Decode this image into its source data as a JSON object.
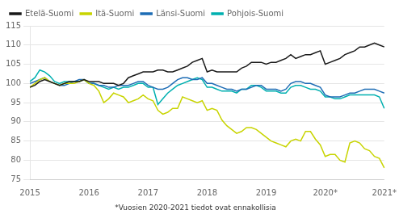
{
  "chart_data": {
    "type": "line",
    "annotations": [
      "*Vuosien 2020-2021 tiedot ovat ennakollisia"
    ],
    "categories": [
      "2015",
      null,
      null,
      null,
      null,
      null,
      null,
      null,
      null,
      null,
      null,
      null,
      "2016",
      null,
      null,
      null,
      null,
      null,
      null,
      null,
      null,
      null,
      null,
      null,
      "2017",
      null,
      null,
      null,
      null,
      null,
      null,
      null,
      null,
      null,
      null,
      null,
      "2018",
      null,
      null,
      null,
      null,
      null,
      null,
      null,
      null,
      null,
      null,
      null,
      "2019",
      null,
      null,
      null,
      null,
      null,
      null,
      null,
      null,
      null,
      null,
      null,
      "2020*",
      null,
      null,
      null,
      null,
      null,
      null,
      null,
      null,
      null,
      null,
      null,
      "2021*"
    ],
    "series": [
      {
        "name": "Etelä-Suomi",
        "color": "#1a1a1a",
        "values": [
          99.0,
          99.5,
          100.5,
          101.0,
          100.5,
          100.0,
          99.5,
          100.0,
          100.5,
          100.5,
          100.5,
          101.0,
          100.5,
          100.5,
          100.5,
          100.0,
          100.0,
          100.0,
          99.5,
          100.0,
          101.5,
          102.0,
          102.5,
          103.0,
          103.0,
          103.0,
          103.5,
          103.5,
          103.0,
          103.0,
          103.5,
          104.0,
          104.5,
          105.5,
          106.0,
          106.5,
          103.0,
          103.5,
          103.0,
          103.0,
          103.0,
          103.0,
          103.0,
          104.0,
          104.5,
          105.5,
          105.5,
          105.5,
          105.0,
          105.5,
          105.5,
          106.0,
          106.5,
          107.5,
          106.5,
          107.0,
          107.5,
          107.5,
          108.0,
          108.5,
          105.0,
          105.5,
          106.0,
          106.5,
          107.5,
          108.0,
          108.5,
          109.5,
          109.5,
          110.0,
          110.5,
          110.0,
          109.5
        ]
      },
      {
        "name": "Itä-Suomi",
        "color": "#c8d400",
        "values": [
          99.0,
          100.0,
          101.0,
          101.5,
          100.5,
          100.0,
          99.5,
          100.0,
          100.0,
          100.0,
          100.5,
          101.0,
          100.0,
          99.5,
          98.0,
          95.0,
          96.0,
          97.5,
          97.0,
          96.5,
          95.0,
          95.5,
          96.0,
          97.0,
          96.0,
          95.5,
          93.0,
          92.0,
          92.5,
          93.5,
          93.5,
          96.5,
          96.0,
          95.5,
          95.0,
          95.5,
          93.0,
          93.5,
          93.0,
          90.5,
          89.0,
          88.0,
          87.0,
          87.5,
          88.5,
          88.5,
          88.0,
          87.0,
          86.0,
          85.0,
          84.5,
          84.0,
          83.5,
          85.0,
          85.5,
          85.0,
          87.5,
          87.5,
          85.5,
          84.0,
          81.0,
          81.5,
          81.5,
          80.0,
          79.5,
          84.5,
          85.0,
          84.5,
          83.0,
          82.5,
          81.0,
          80.5,
          78.0
        ]
      },
      {
        "name": "Länsi-Suomi",
        "color": "#1e6db5",
        "values": [
          100.0,
          100.5,
          101.0,
          101.5,
          100.5,
          100.0,
          99.5,
          99.5,
          100.0,
          100.5,
          101.0,
          101.0,
          100.0,
          100.0,
          99.5,
          99.5,
          99.0,
          99.0,
          99.5,
          99.5,
          99.5,
          100.0,
          100.5,
          100.5,
          99.5,
          99.0,
          98.5,
          98.5,
          99.0,
          100.0,
          101.0,
          101.5,
          101.5,
          101.0,
          101.0,
          101.5,
          100.0,
          100.0,
          99.5,
          99.0,
          98.5,
          98.5,
          98.0,
          98.5,
          98.5,
          99.0,
          99.5,
          99.5,
          98.5,
          98.5,
          98.5,
          98.0,
          98.5,
          100.0,
          100.5,
          100.5,
          100.0,
          100.0,
          99.5,
          99.0,
          97.0,
          96.5,
          96.5,
          96.5,
          97.0,
          97.5,
          97.5,
          98.0,
          98.5,
          98.5,
          98.5,
          98.0,
          97.5
        ]
      },
      {
        "name": "Pohjois-Suomi",
        "color": "#00b0b0",
        "values": [
          100.5,
          101.5,
          103.5,
          103.0,
          102.0,
          100.5,
          100.0,
          100.5,
          100.5,
          100.5,
          100.5,
          101.0,
          100.0,
          100.0,
          99.5,
          99.0,
          98.5,
          99.0,
          98.5,
          99.0,
          99.0,
          99.5,
          100.0,
          100.0,
          99.0,
          99.0,
          94.5,
          96.0,
          97.5,
          98.5,
          99.5,
          100.0,
          100.5,
          101.0,
          101.5,
          101.0,
          99.0,
          99.0,
          98.5,
          98.0,
          98.0,
          98.0,
          97.5,
          98.5,
          98.5,
          99.5,
          99.5,
          99.0,
          98.0,
          98.0,
          98.0,
          97.5,
          97.5,
          99.0,
          99.5,
          99.5,
          99.0,
          98.5,
          98.5,
          98.0,
          96.5,
          96.5,
          96.0,
          96.0,
          96.5,
          97.0,
          97.0,
          97.0,
          97.0,
          97.0,
          97.0,
          96.5,
          93.5
        ]
      }
    ],
    "ylim": [
      75,
      115
    ],
    "yticks": [
      75,
      80,
      85,
      90,
      95,
      100,
      105,
      110,
      115
    ],
    "grid": true,
    "legend": "top left"
  }
}
